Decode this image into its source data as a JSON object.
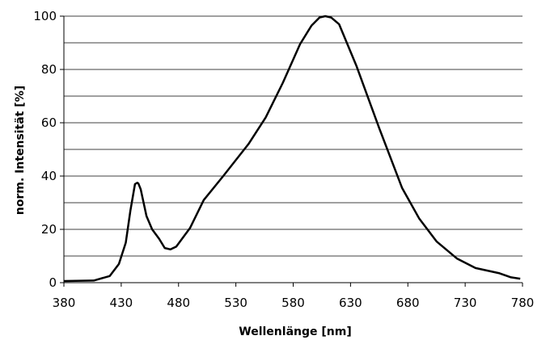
{
  "chart_data": {
    "type": "line",
    "xlabel": "Wellenlänge [nm]",
    "ylabel": "norm. Intensität [%]",
    "xlim": [
      380,
      780
    ],
    "ylim": [
      0,
      100
    ],
    "x_ticks": [
      380,
      430,
      480,
      530,
      580,
      630,
      680,
      730,
      780
    ],
    "y_ticks": [
      0,
      20,
      40,
      60,
      80,
      100
    ],
    "y_gridlines": [
      10,
      20,
      30,
      40,
      50,
      60,
      70,
      80,
      90,
      100
    ],
    "grid": "horizontal",
    "series": [
      {
        "color": "#000000",
        "x": [
          380,
          406,
          420,
          428,
          434,
          438,
          442,
          444,
          445,
          447,
          452,
          457,
          463,
          468,
          473,
          478,
          490,
          502,
          519,
          541,
          556,
          571,
          586,
          596,
          603,
          608,
          613,
          620,
          635,
          655,
          675,
          690,
          705,
          723,
          739,
          760,
          770,
          778
        ],
        "y": [
          0.6,
          0.8,
          2.5,
          7,
          15,
          27,
          37,
          37.5,
          37.2,
          35,
          25,
          20,
          16.5,
          13,
          12.5,
          13.5,
          20.5,
          31,
          40,
          52,
          62,
          75,
          89.5,
          96.5,
          99.5,
          100,
          99.5,
          97,
          81.5,
          58,
          35.5,
          24,
          15.5,
          9,
          5.5,
          3.5,
          2,
          1.5
        ]
      }
    ]
  }
}
